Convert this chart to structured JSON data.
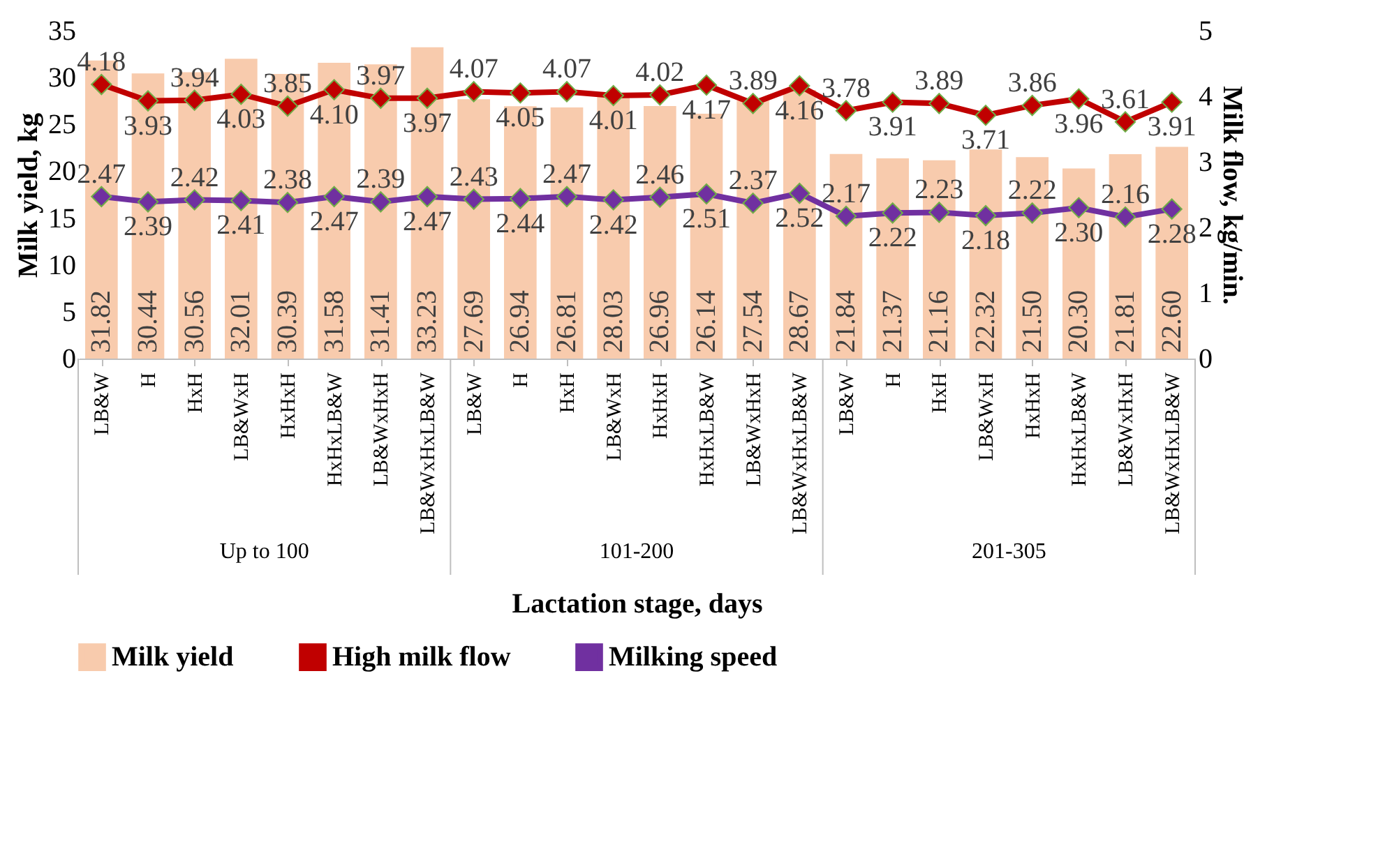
{
  "chart_data": {
    "type": "bar",
    "xlabel": "Lactation stage, days",
    "ylabel": "Milk yield, kg",
    "y2label": "Milk flow, kg/min.",
    "categories": [
      "LB&W",
      "H",
      "HxH",
      "LB&WxH",
      "HxHxH",
      "HxHxLB&W",
      "LB&WxHxH",
      "LB&WxHxLB&W",
      "LB&W",
      "H",
      "HxH",
      "LB&WxH",
      "HxHxH",
      "HxHxLB&W",
      "LB&WxHxH",
      "LB&WxHxLB&W",
      "LB&W",
      "H",
      "HxH",
      "LB&WxH",
      "HxHxH",
      "HxHxLB&W",
      "LB&WxHxH",
      "LB&WxHxLB&W"
    ],
    "annotations": [
      "Up to 100",
      "101-200",
      "201-305"
    ],
    "series": [
      {
        "name": "Milk yield",
        "type": "bar",
        "color": "#f8cbad",
        "values": [
          31.82,
          30.44,
          30.56,
          32.01,
          30.39,
          31.58,
          31.41,
          33.23,
          27.69,
          26.94,
          26.81,
          28.03,
          26.96,
          26.14,
          27.54,
          28.67,
          21.84,
          21.37,
          21.16,
          22.32,
          21.5,
          20.3,
          21.81,
          22.6
        ],
        "value_labels": [
          "31.82",
          "30.44",
          "30.56",
          "32.01",
          "30.39",
          "31.58",
          "31.41",
          "33.23",
          "27.69",
          "26.94",
          "26.81",
          "28.03",
          "26.96",
          "26.14",
          "27.54",
          "28.67",
          "21.84",
          "21.37",
          "21.16",
          "22.32",
          "21.50",
          "20.30",
          "21.81",
          "22.60"
        ]
      },
      {
        "name": "High milk flow",
        "type": "line",
        "axis": "y2",
        "color": "#c00000",
        "values": [
          4.18,
          3.93,
          3.94,
          4.03,
          3.85,
          4.1,
          3.97,
          3.97,
          4.07,
          4.05,
          4.07,
          4.01,
          4.02,
          4.17,
          3.89,
          4.16,
          3.78,
          3.91,
          3.89,
          3.71,
          3.86,
          3.96,
          3.61,
          3.91
        ],
        "value_labels": [
          "4.18",
          "3.93",
          "3.94",
          "4.03",
          "3.85",
          "4.10",
          "3.97",
          "3.97",
          "4.07",
          "4.05",
          "4.07",
          "4.01",
          "4.02",
          "4.17",
          "3.89",
          "4.16",
          "3.78",
          "3.91",
          "3.89",
          "3.71",
          "3.86",
          "3.96",
          "3.61",
          "3.91"
        ]
      },
      {
        "name": "Milking speed",
        "type": "line",
        "axis": "y2",
        "color": "#7030a0",
        "values": [
          2.47,
          2.39,
          2.42,
          2.41,
          2.38,
          2.47,
          2.39,
          2.47,
          2.43,
          2.44,
          2.47,
          2.42,
          2.46,
          2.51,
          2.37,
          2.52,
          2.17,
          2.22,
          2.23,
          2.18,
          2.22,
          2.3,
          2.16,
          2.28
        ],
        "value_labels": [
          "2.47",
          "2.39",
          "2.42",
          "2.41",
          "2.38",
          "2.47",
          "2.39",
          "2.47",
          "2.43",
          "2.44",
          "2.47",
          "2.42",
          "2.46",
          "2.51",
          "2.37",
          "2.52",
          "2.17",
          "2.22",
          "2.23",
          "2.18",
          "2.22",
          "2.30",
          "2.16",
          "2.28"
        ]
      }
    ],
    "ylim": [
      0,
      35
    ],
    "yticks": [
      0,
      5,
      10,
      15,
      20,
      25,
      30,
      35
    ],
    "y2lim": [
      0,
      5
    ],
    "y2ticks": [
      0,
      1,
      2,
      3,
      4,
      5
    ],
    "marker": "diamond",
    "line_style": "solid",
    "data_labels": true,
    "legend": "bottom"
  }
}
